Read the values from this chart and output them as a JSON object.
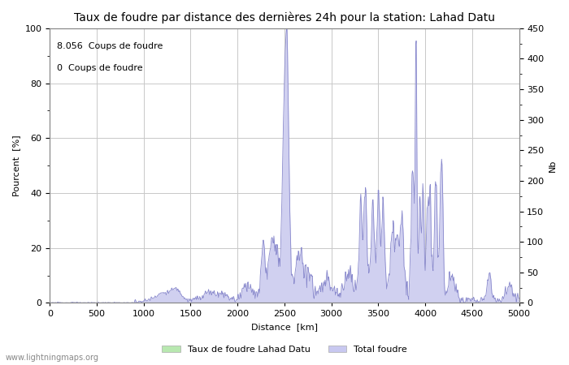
{
  "title": "Taux de foudre par distance des dernières 24h pour la station: Lahad Datu",
  "xlabel": "Distance  [km]",
  "ylabel_left": "Pourcent  [%]",
  "ylabel_right": "Nb",
  "annotation_line1": "8.056  Coups de foudre",
  "annotation_line2": "0  Coups de foudre",
  "xlim": [
    0,
    5000
  ],
  "ylim_left": [
    0,
    100
  ],
  "ylim_right": [
    0,
    450
  ],
  "xticks": [
    0,
    500,
    1000,
    1500,
    2000,
    2500,
    3000,
    3500,
    4000,
    4500,
    5000
  ],
  "yticks_left": [
    0,
    20,
    40,
    60,
    80,
    100
  ],
  "yticks_right": [
    0,
    50,
    100,
    150,
    200,
    250,
    300,
    350,
    400,
    450
  ],
  "watermark": "www.lightningmaps.org",
  "legend_label1": "Taux de foudre Lahad Datu",
  "legend_label2": "Total foudre",
  "legend_color1": "#b8e8b0",
  "legend_color2": "#c8c8f0",
  "line_color": "#8888cc",
  "fill_color": "#d0d0f0",
  "bg_color": "#ffffff",
  "grid_color": "#c8c8c8",
  "title_fontsize": 10,
  "label_fontsize": 8,
  "tick_fontsize": 8,
  "annot_fontsize": 8,
  "watermark_fontsize": 7
}
